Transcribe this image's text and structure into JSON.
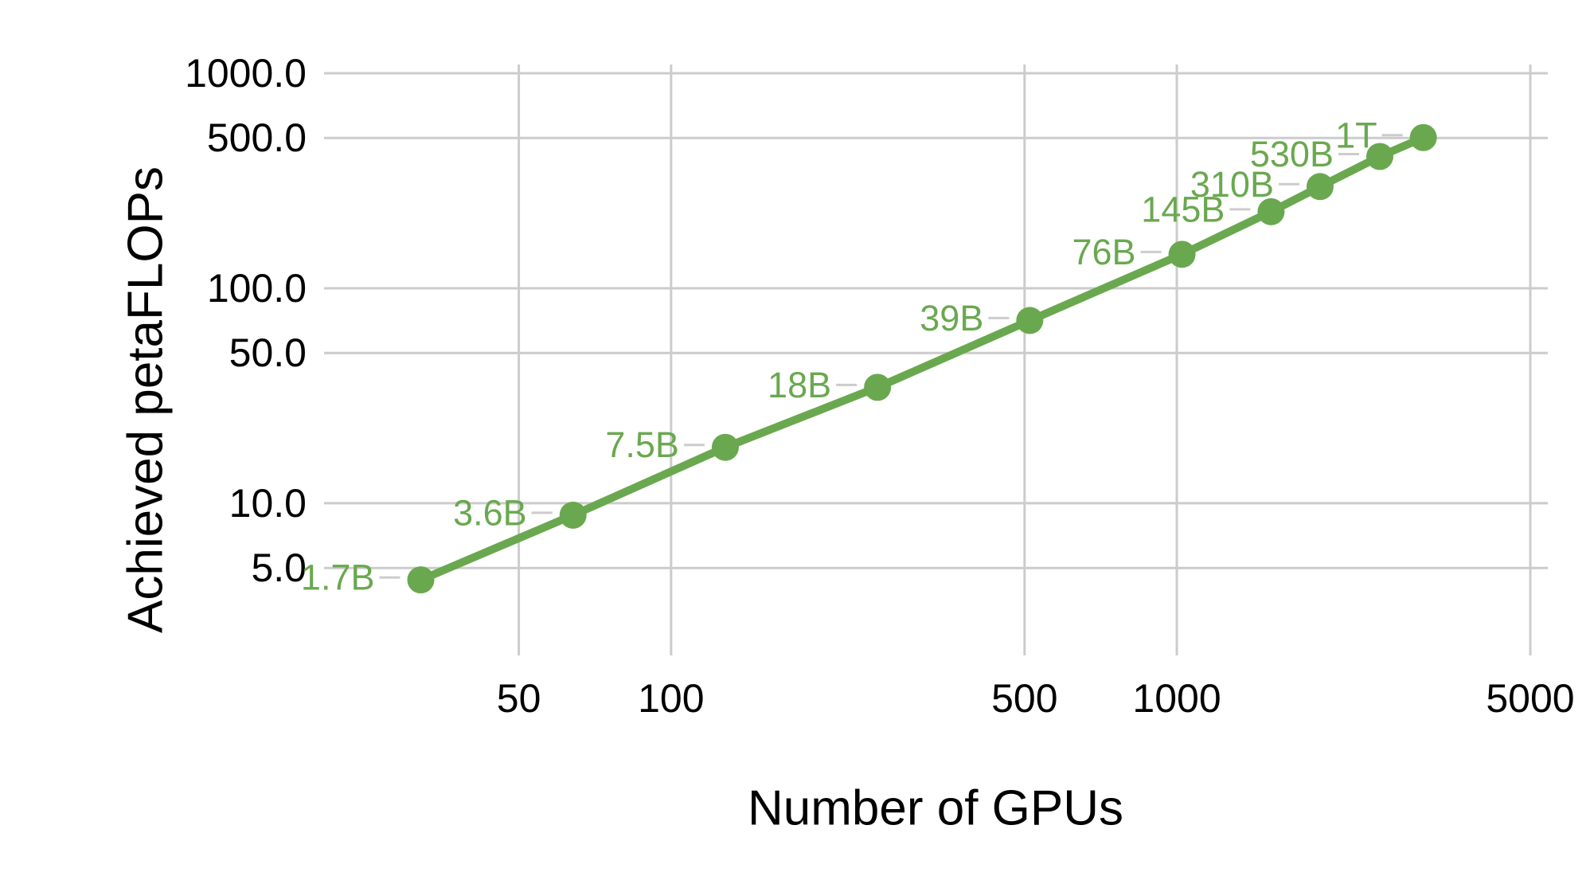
{
  "figure": {
    "background": "#ffffff"
  },
  "colors": {
    "series": "#6aa84f",
    "grid": "#cccccc",
    "leader_line": "#cccccc",
    "axis_text": "#000000"
  },
  "chart_data": {
    "type": "line",
    "title": "",
    "xlabel": "Number of GPUs",
    "ylabel": "Achieved petaFLOPs",
    "x_scale": "log",
    "y_scale": "log",
    "xlim": [
      20.6,
      5415
    ],
    "ylim": [
      1.96,
      1098
    ],
    "grid": true,
    "legend": "none",
    "x_ticks": [
      {
        "value": 50,
        "label": "50"
      },
      {
        "value": 100,
        "label": "100"
      },
      {
        "value": 500,
        "label": "500"
      },
      {
        "value": 1000,
        "label": "1000"
      },
      {
        "value": 5000,
        "label": "5000"
      }
    ],
    "y_ticks": [
      {
        "value": 5,
        "label": "5.0"
      },
      {
        "value": 10,
        "label": "10.0"
      },
      {
        "value": 50,
        "label": "50.0"
      },
      {
        "value": 100,
        "label": "100.0"
      },
      {
        "value": 500,
        "label": "500.0"
      },
      {
        "value": 1000,
        "label": "1000.0"
      }
    ],
    "series": [
      {
        "name": "Achieved petaFLOPs",
        "color": "#6aa84f",
        "marker": "circle",
        "points": [
          {
            "label": "1.7B",
            "x": 32,
            "y": 4.4
          },
          {
            "label": "3.6B",
            "x": 64,
            "y": 8.8
          },
          {
            "label": "7.5B",
            "x": 128,
            "y": 18.2
          },
          {
            "label": "18B",
            "x": 256,
            "y": 34.6
          },
          {
            "label": "39B",
            "x": 512,
            "y": 70.8
          },
          {
            "label": "76B",
            "x": 1024,
            "y": 143.8
          },
          {
            "label": "145B",
            "x": 1536,
            "y": 227
          },
          {
            "label": "310B",
            "x": 1920,
            "y": 297
          },
          {
            "label": "530B",
            "x": 2520,
            "y": 410
          },
          {
            "label": "1T",
            "x": 3072,
            "y": 502
          }
        ]
      }
    ]
  }
}
